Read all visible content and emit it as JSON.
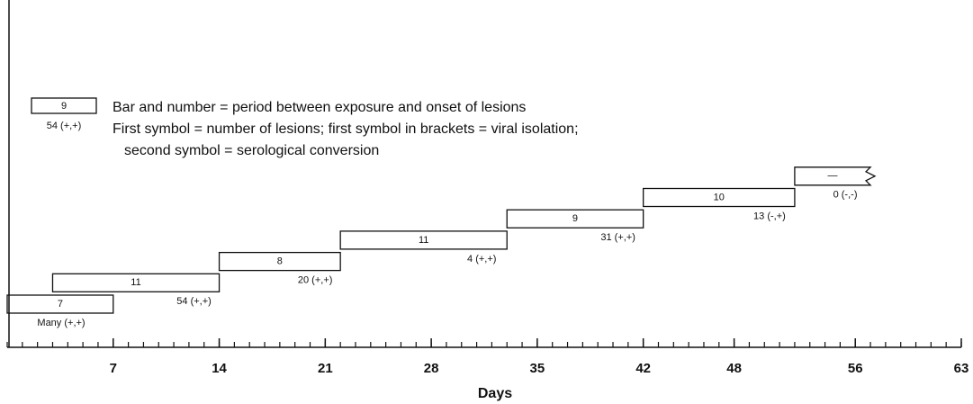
{
  "chart_data": {
    "type": "timeline",
    "x_label": "Days",
    "xlim": [
      0,
      63
    ],
    "xticks": [
      7,
      14,
      21,
      28,
      35,
      42,
      48,
      56,
      63
    ],
    "minor_xtick_step": 1,
    "legend": {
      "sample_label": "9",
      "sample_caption": "54 (+,+)",
      "lines": [
        "Bar and number = period between exposure and onset of lesions",
        "First symbol = number of lesions; first symbol in brackets = viral isolation;",
        "second symbol = serological conversion"
      ]
    },
    "bars": [
      {
        "start": 0,
        "end": 7,
        "label": "7",
        "caption": "Many (+,+)"
      },
      {
        "start": 3,
        "end": 14,
        "label": "11",
        "caption": "54 (+,+)"
      },
      {
        "start": 14,
        "end": 22,
        "label": "8",
        "caption": "20 (+,+)"
      },
      {
        "start": 22,
        "end": 33,
        "label": "11",
        "caption": "4 (+,+)"
      },
      {
        "start": 33,
        "end": 42,
        "label": "9",
        "caption": "31 (+,+)"
      },
      {
        "start": 42,
        "end": 52,
        "label": "10",
        "caption": "13 (-,+)"
      },
      {
        "start": 52,
        "end": 57,
        "label": "—",
        "caption": "0 (-,-)",
        "open": true
      }
    ]
  }
}
